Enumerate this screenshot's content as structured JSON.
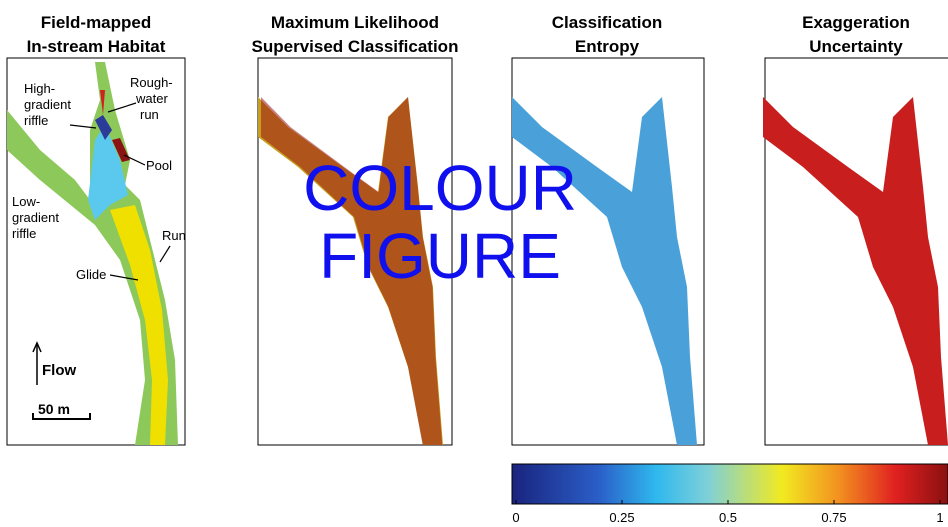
{
  "panels": [
    {
      "title": [
        "Field-mapped",
        "In-stream Habitat"
      ]
    },
    {
      "title": [
        "Maximum Likelihood",
        "Supervised Classification"
      ]
    },
    {
      "title": [
        "Classification",
        "Entropy"
      ]
    },
    {
      "title": [
        "Exaggeration",
        "Uncertainty"
      ]
    }
  ],
  "habitat_labels": {
    "high_gradient_riffle": [
      "High-",
      "gradient",
      "riffle"
    ],
    "rough_water_run": [
      "Rough-",
      "water",
      "run"
    ],
    "pool": "Pool",
    "low_gradient_riffle": [
      "Low-",
      "gradient",
      "riffle"
    ],
    "run": "Run",
    "glide": "Glide",
    "flow": "Flow",
    "scale": "50 m"
  },
  "overlay": [
    "COLOUR",
    "FIGURE"
  ],
  "colorbar": {
    "range": [
      0,
      1
    ],
    "ticks": [
      0,
      0.25,
      0.5,
      0.75,
      1
    ]
  }
}
